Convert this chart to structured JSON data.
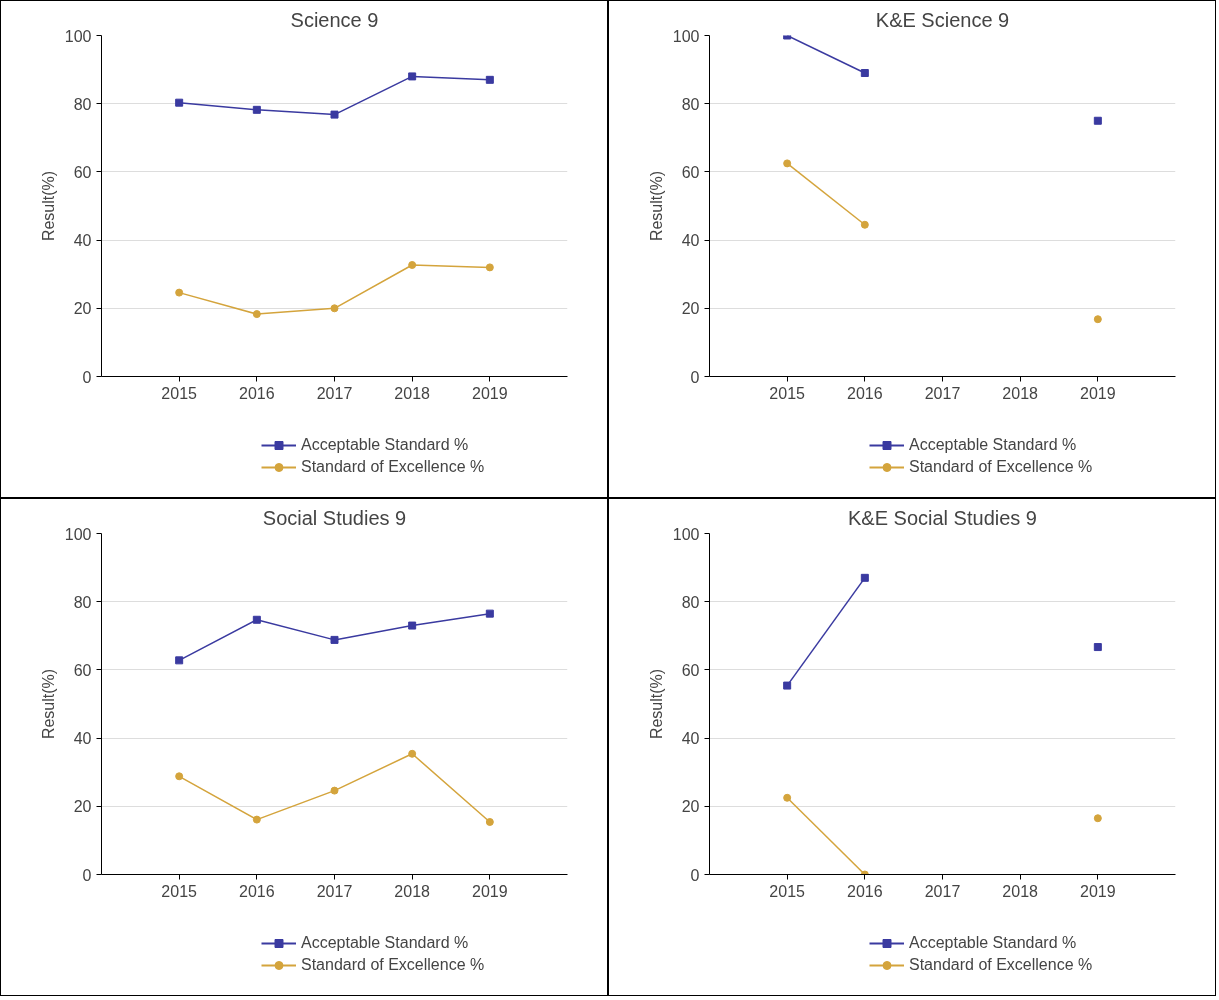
{
  "chart_data": [
    {
      "type": "line",
      "title": "Science 9",
      "ylabel": "Result(%)",
      "categories": [
        "2015",
        "2016",
        "2017",
        "2018",
        "2019"
      ],
      "ylim": [
        0,
        100
      ],
      "yticks": [
        0,
        20,
        40,
        60,
        80,
        100
      ],
      "grid": "y",
      "legend": "bottom",
      "series": [
        {
          "name": "Acceptable Standard %",
          "color": "#3a3aa0",
          "marker": "square",
          "values": [
            80.3,
            78.2,
            76.8,
            88,
            87
          ]
        },
        {
          "name": "Standard of Excellence %",
          "color": "#d4a43c",
          "marker": "circle",
          "values": [
            24.6,
            18.3,
            20,
            32.7,
            32
          ]
        }
      ]
    },
    {
      "type": "line",
      "title": "K&E Science 9",
      "ylabel": "Result(%)",
      "categories": [
        "2015",
        "2016",
        "2017",
        "2018",
        "2019"
      ],
      "ylim": [
        0,
        100
      ],
      "yticks": [
        0,
        20,
        40,
        60,
        80,
        100
      ],
      "grid": "y",
      "legend": "bottom",
      "series": [
        {
          "name": "Acceptable Standard %",
          "color": "#3a3aa0",
          "marker": "square",
          "values": [
            100,
            89,
            null,
            null,
            75
          ]
        },
        {
          "name": "Standard of Excellence %",
          "color": "#d4a43c",
          "marker": "circle",
          "values": [
            62.5,
            44.5,
            null,
            null,
            16.8
          ]
        }
      ]
    },
    {
      "type": "line",
      "title": "Social Studies 9",
      "ylabel": "Result(%)",
      "categories": [
        "2015",
        "2016",
        "2017",
        "2018",
        "2019"
      ],
      "ylim": [
        0,
        100
      ],
      "yticks": [
        0,
        20,
        40,
        60,
        80,
        100
      ],
      "grid": "y",
      "legend": "bottom",
      "series": [
        {
          "name": "Acceptable Standard %",
          "color": "#3a3aa0",
          "marker": "square",
          "values": [
            62.8,
            74.7,
            68.8,
            73,
            76.5
          ]
        },
        {
          "name": "Standard of Excellence %",
          "color": "#d4a43c",
          "marker": "circle",
          "values": [
            28.8,
            16.1,
            24.6,
            35.4,
            15.4
          ]
        }
      ]
    },
    {
      "type": "line",
      "title": "K&E Social Studies 9",
      "ylabel": "Result(%)",
      "categories": [
        "2015",
        "2016",
        "2017",
        "2018",
        "2019"
      ],
      "ylim": [
        0,
        100
      ],
      "yticks": [
        0,
        20,
        40,
        60,
        80,
        100
      ],
      "grid": "y",
      "legend": "bottom",
      "series": [
        {
          "name": "Acceptable Standard %",
          "color": "#3a3aa0",
          "marker": "square",
          "values": [
            55.4,
            87,
            null,
            null,
            66.7
          ]
        },
        {
          "name": "Standard of Excellence %",
          "color": "#d4a43c",
          "marker": "circle",
          "values": [
            22.5,
            0,
            null,
            null,
            16.5
          ]
        }
      ]
    }
  ]
}
